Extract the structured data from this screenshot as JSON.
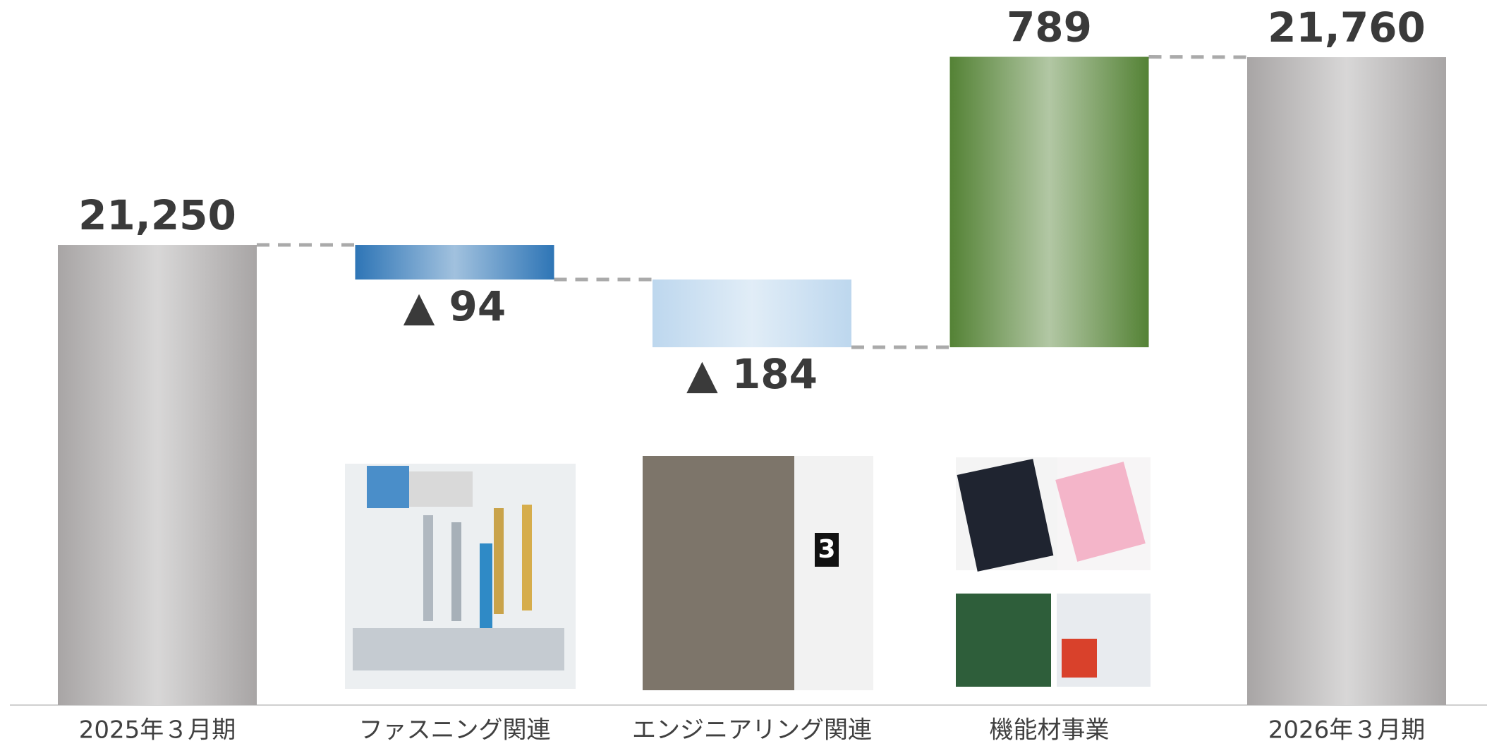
{
  "chart_data": {
    "type": "waterfall",
    "categories": [
      "2025年３月期",
      "ファスニング関連",
      "エンジニアリング関連",
      "機能材事業",
      "2026年３月期"
    ],
    "values": [
      21250,
      -94,
      -184,
      789,
      21760
    ],
    "value_labels": [
      "21,250",
      "▲ 94",
      "▲ 184",
      "789",
      "21,760"
    ],
    "colors": [
      "#a8a5a5",
      "#2e75b6",
      "#bdd7ee",
      "#548235",
      "#a8a5a5"
    ],
    "ylim": [
      20000,
      21900
    ]
  }
}
